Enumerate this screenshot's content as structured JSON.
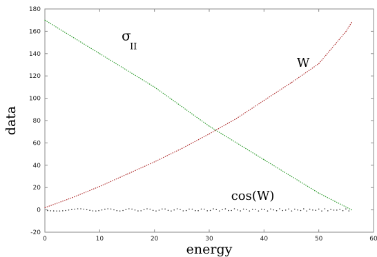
{
  "chart_data": {
    "type": "line",
    "xlabel": "energy",
    "ylabel": "data",
    "xlim": [
      0,
      60
    ],
    "ylim": [
      -20,
      180
    ],
    "xticks": [
      "0",
      "10",
      "20",
      "30",
      "40",
      "50",
      "60"
    ],
    "yticks": [
      "-20",
      "0",
      "20",
      "40",
      "60",
      "80",
      "100",
      "120",
      "140",
      "160",
      "180"
    ],
    "grid": false,
    "legend": "none",
    "series": [
      {
        "name": "W",
        "style": "dotted",
        "color": "#b03030",
        "x": [
          0,
          5,
          10,
          15,
          20,
          25,
          30,
          35,
          40,
          45,
          50,
          55,
          56
        ],
        "y": [
          2,
          11,
          21,
          32,
          43,
          55,
          68,
          82,
          98,
          114,
          131,
          160,
          168
        ]
      },
      {
        "name": "σ_II",
        "style": "dotted",
        "color": "#2a9a2a",
        "x": [
          0,
          10,
          20,
          30,
          40,
          50,
          56
        ],
        "y": [
          170,
          140,
          110,
          75,
          45,
          15,
          0
        ]
      },
      {
        "name": "cos(W)",
        "style": "points",
        "color": "#333333",
        "x_range": [
          0,
          56
        ],
        "amplitude": 1
      }
    ],
    "annotations": [
      {
        "text": "σ",
        "subscript": "II",
        "x": 14,
        "y": 152
      },
      {
        "text": "W",
        "x": 46,
        "y": 128
      },
      {
        "text": "cos(W)",
        "x": 34,
        "y": 9
      }
    ]
  }
}
